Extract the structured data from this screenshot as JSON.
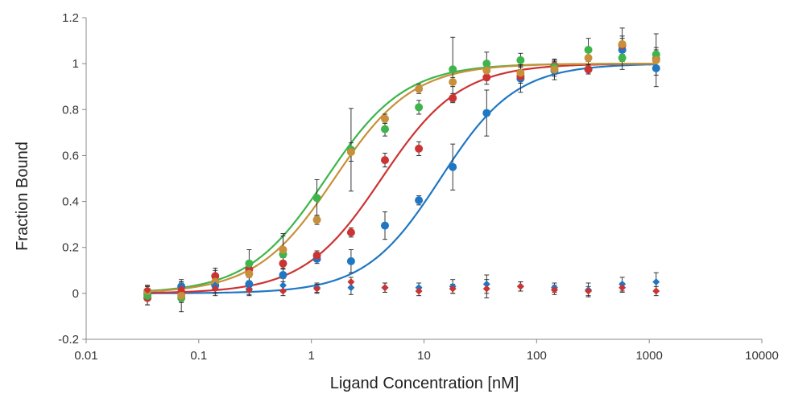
{
  "chart_data": {
    "type": "scatter",
    "xlabel": "Ligand Concentration [nM]",
    "ylabel": "Fraction Bound",
    "xscale": "log",
    "xlim": [
      0.01,
      10000
    ],
    "ylim": [
      -0.2,
      1.2
    ],
    "x_ticks": [
      "0.01",
      "0.1",
      "1",
      "10",
      "100",
      "1000",
      "10000"
    ],
    "y_ticks": [
      "-0.2",
      "0",
      "0.2",
      "0.4",
      "0.6",
      "0.8",
      "1",
      "1.2"
    ],
    "grid": false,
    "legend": "none",
    "x": [
      0.035,
      0.07,
      0.14,
      0.28,
      0.56,
      1.12,
      2.25,
      4.5,
      9.0,
      18.0,
      36.0,
      72.0,
      144.0,
      288.0,
      576.0,
      1152.0
    ],
    "series": [
      {
        "color": "#1f77c4",
        "marker": "circle",
        "kd_fit": 14.0,
        "hill": 1.3,
        "values": [
          0.0,
          0.03,
          0.035,
          0.04,
          0.08,
          0.15,
          0.14,
          0.295,
          0.405,
          0.55,
          0.785,
          0.935,
          0.97,
          0.975,
          1.06,
          0.98
        ],
        "errors": [
          0.02,
          0.02,
          0.02,
          0.03,
          0.03,
          0.02,
          0.05,
          0.06,
          0.02,
          0.1,
          0.1,
          0.06,
          0.04,
          0.02,
          0.05,
          0.08
        ]
      },
      {
        "color": "#cc3333",
        "marker": "circle",
        "kd_fit": 4.2,
        "hill": 1.25,
        "values": [
          -0.02,
          0.005,
          0.075,
          0.105,
          0.13,
          0.165,
          0.265,
          0.58,
          0.63,
          0.85,
          0.94,
          0.945,
          0.99,
          0.975,
          1.08,
          1.02
        ],
        "errors": [
          0.03,
          0.04,
          0.035,
          0.03,
          0.025,
          0.02,
          0.02,
          0.03,
          0.03,
          0.02,
          0.03,
          0.03,
          0.03,
          0.02,
          0.04,
          0.05
        ]
      },
      {
        "color": "#3db54a",
        "marker": "circle",
        "kd_fit": 1.35,
        "hill": 1.25,
        "values": [
          -0.01,
          -0.02,
          0.05,
          0.13,
          0.17,
          0.415,
          0.625,
          0.715,
          0.81,
          0.975,
          1.0,
          1.015,
          0.985,
          1.06,
          1.025,
          1.04
        ],
        "errors": [
          0.04,
          0.06,
          0.05,
          0.06,
          0.09,
          0.08,
          0.18,
          0.03,
          0.03,
          0.14,
          0.05,
          0.03,
          0.03,
          0.05,
          0.05,
          0.09
        ]
      },
      {
        "color": "#c8903a",
        "marker": "circle",
        "kd_fit": 1.6,
        "hill": 1.25,
        "values": [
          0.01,
          -0.01,
          0.05,
          0.085,
          0.19,
          0.32,
          0.615,
          0.76,
          0.89,
          0.92,
          0.97,
          0.96,
          0.975,
          1.025,
          1.085,
          1.015
        ],
        "errors": [
          0.02,
          0.03,
          0.03,
          0.03,
          0.06,
          0.02,
          0.04,
          0.02,
          0.02,
          0.02,
          0.03,
          0.03,
          0.03,
          0.03,
          0.07,
          0.03
        ]
      },
      {
        "color": "#1f77c4",
        "marker": "diamond",
        "values": [
          0.015,
          0.03,
          0.035,
          0.02,
          0.035,
          0.025,
          0.025,
          0.025,
          0.025,
          0.03,
          0.04,
          0.03,
          0.025,
          0.015,
          0.04,
          0.05
        ],
        "errors": [
          0.02,
          0.03,
          0.02,
          0.03,
          0.03,
          0.02,
          0.03,
          0.02,
          0.02,
          0.03,
          0.04,
          0.02,
          0.02,
          0.03,
          0.03,
          0.04
        ]
      },
      {
        "color": "#cc3333",
        "marker": "diamond",
        "values": [
          0.015,
          0.02,
          0.02,
          0.015,
          0.01,
          0.02,
          0.05,
          0.025,
          0.01,
          0.02,
          0.02,
          0.03,
          0.015,
          0.01,
          0.025,
          0.01
        ],
        "errors": [
          0.02,
          0.03,
          0.03,
          0.02,
          0.02,
          0.02,
          0.02,
          0.02,
          0.02,
          0.02,
          0.04,
          0.02,
          0.02,
          0.02,
          0.02,
          0.02
        ]
      }
    ]
  }
}
